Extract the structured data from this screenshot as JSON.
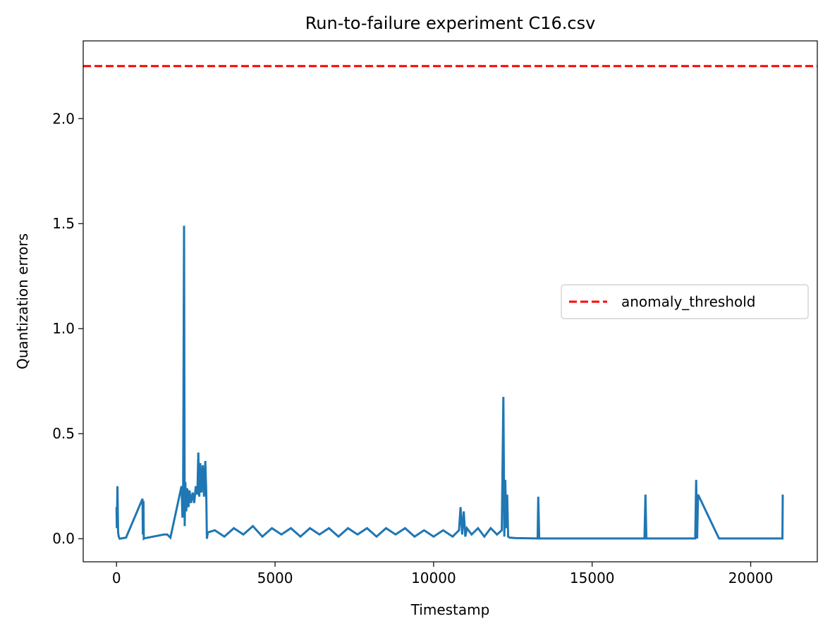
{
  "chart_data": {
    "type": "line",
    "title": "Run-to-failure experiment C16.csv",
    "xlabel": "Timestamp",
    "ylabel": "Quantization errors",
    "xlim": [
      -1050,
      22100
    ],
    "ylim": [
      -0.11,
      2.37
    ],
    "xticks": [
      0,
      5000,
      10000,
      15000,
      20000
    ],
    "xtick_labels": [
      "0",
      "5000",
      "10000",
      "15000",
      "20000"
    ],
    "yticks": [
      0.0,
      0.5,
      1.0,
      1.5,
      2.0
    ],
    "ytick_labels": [
      "0.0",
      "0.5",
      "1.0",
      "1.5",
      "2.0"
    ],
    "grid": false,
    "legend_position": "center-right",
    "colors": {
      "series": "#1f77b4",
      "threshold": "#ff0000"
    },
    "threshold": {
      "name": "anomaly_threshold",
      "value": 2.25
    },
    "series": [
      {
        "x": [
          0,
          10,
          30,
          50,
          70,
          100,
          300,
          820,
          830,
          850,
          860,
          880,
          1500,
          1600,
          1700,
          2050,
          2080,
          2100,
          2130,
          2150,
          2170,
          2200,
          2230,
          2270,
          2300,
          2350,
          2400,
          2450,
          2500,
          2550,
          2580,
          2610,
          2640,
          2680,
          2720,
          2760,
          2800,
          2830,
          2850,
          2880,
          3100,
          3400,
          3700,
          4000,
          4300,
          4600,
          4900,
          5200,
          5500,
          5800,
          6100,
          6400,
          6700,
          7000,
          7300,
          7600,
          7900,
          8200,
          8500,
          8800,
          9100,
          9400,
          9700,
          10000,
          10300,
          10600,
          10800,
          10850,
          10900,
          10950,
          11000,
          11050,
          11200,
          11400,
          11600,
          11800,
          12000,
          12150,
          12200,
          12230,
          12260,
          12290,
          12320,
          12350,
          12400,
          12600,
          13000,
          13280,
          13300,
          13330,
          14000,
          15000,
          16000,
          16650,
          16680,
          16710,
          16740,
          17500,
          18250,
          18280,
          18310,
          18340,
          19000,
          20000,
          21000,
          21010
        ],
        "y": [
          0.15,
          0.05,
          0.25,
          0.03,
          0.01,
          0.0,
          0.005,
          0.19,
          0.02,
          0.18,
          0.0,
          0.002,
          0.02,
          0.02,
          0.005,
          0.25,
          0.1,
          0.18,
          1.49,
          0.06,
          0.27,
          0.13,
          0.24,
          0.15,
          0.23,
          0.17,
          0.22,
          0.17,
          0.25,
          0.21,
          0.41,
          0.2,
          0.36,
          0.22,
          0.35,
          0.2,
          0.37,
          0.22,
          0.0,
          0.03,
          0.04,
          0.01,
          0.05,
          0.02,
          0.06,
          0.01,
          0.05,
          0.02,
          0.05,
          0.01,
          0.05,
          0.02,
          0.05,
          0.01,
          0.05,
          0.02,
          0.05,
          0.01,
          0.05,
          0.02,
          0.05,
          0.01,
          0.04,
          0.01,
          0.04,
          0.01,
          0.04,
          0.15,
          0.02,
          0.13,
          0.01,
          0.05,
          0.02,
          0.05,
          0.01,
          0.05,
          0.02,
          0.04,
          0.675,
          0.01,
          0.28,
          0.05,
          0.21,
          0.01,
          0.005,
          0.003,
          0.002,
          0.001,
          0.2,
          0.001,
          0.001,
          0.001,
          0.001,
          0.001,
          0.21,
          0.001,
          0.001,
          0.001,
          0.001,
          0.28,
          0.001,
          0.21,
          0.001,
          0.001,
          0.001,
          0.21
        ]
      }
    ]
  }
}
